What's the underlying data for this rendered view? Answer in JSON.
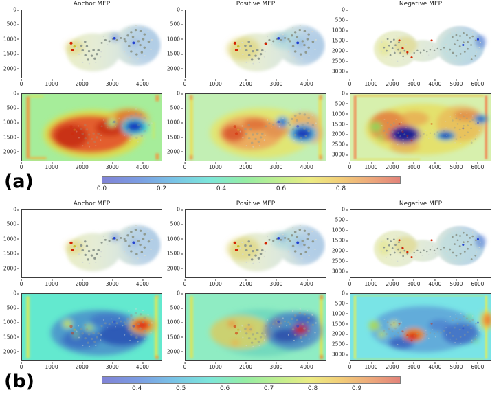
{
  "figure": {
    "description": "Two-part figure (a)/(b): molecular electrostatic potential surfaces (top rows) and attention heatmap overlays (bottom rows) for Anchor, Positive and Negative molecules, each part with a horizontal rainbow colorbar.",
    "colors": {
      "colormap_stops": [
        "#8083d6",
        "#7b9ce2",
        "#79c3e6",
        "#7ce6da",
        "#95eda4",
        "#c3ee8e",
        "#eceb83",
        "#f2cd78",
        "#eda97b",
        "#e2837a"
      ],
      "atom_carbon": "#8f9a90",
      "atom_hydrogen": "#d2d9d2",
      "atom_oxygen": "#d42400",
      "atom_nitrogen": "#2140d0",
      "atom_sulfur": "#c8bc28",
      "heatmap_a_bg": [
        "#a6ed9a",
        "#c2efb4",
        "#d7f0ad"
      ],
      "heatmap_b_bg": [
        "#63e9cf",
        "#8fecc3",
        "#79e4e6"
      ]
    }
  },
  "groups": [
    {
      "label": "(a)",
      "columns": [
        {
          "title": "Anchor MEP",
          "x": {
            "values": [
              0,
              1000,
              2000,
              3000,
              4000
            ],
            "min": 0,
            "max": 4650
          },
          "y": {
            "values": [
              0,
              500,
              1000,
              1500,
              2000
            ],
            "min": 0,
            "max": 2330
          }
        },
        {
          "title": "Positive MEP",
          "x": {
            "values": [
              0,
              1000,
              2000,
              3000,
              4000
            ],
            "min": 0,
            "max": 4650
          },
          "y": {
            "values": [
              0,
              500,
              1000,
              1500,
              2000
            ],
            "min": 0,
            "max": 2330
          }
        },
        {
          "title": "Negative MEP",
          "x": {
            "values": [
              0,
              1000,
              2000,
              3000,
              4000,
              5000,
              6000
            ],
            "min": 0,
            "max": 6650
          },
          "y": {
            "values": [
              0,
              500,
              1000,
              1500,
              2000,
              2500,
              3000
            ],
            "min": 0,
            "max": 3330
          }
        }
      ],
      "colorbar": {
        "values": [
          0,
          0.2,
          0.4,
          0.6,
          0.8
        ],
        "labels": [
          "0.0",
          "0.2",
          "0.4",
          "0.6",
          "0.8"
        ],
        "min": 0,
        "max": 1
      }
    },
    {
      "label": "(b)",
      "columns": [
        {
          "title": "Anchor MEP",
          "x": {
            "values": [
              0,
              1000,
              2000,
              3000,
              4000
            ],
            "min": 0,
            "max": 4650
          },
          "y": {
            "values": [
              0,
              500,
              1000,
              1500,
              2000
            ],
            "min": 0,
            "max": 2330
          }
        },
        {
          "title": "Positive MEP",
          "x": {
            "values": [
              0,
              1000,
              2000,
              3000,
              4000
            ],
            "min": 0,
            "max": 4650
          },
          "y": {
            "values": [
              0,
              500,
              1000,
              1500,
              2000
            ],
            "min": 0,
            "max": 2330
          }
        },
        {
          "title": "Negative MEP",
          "x": {
            "values": [
              0,
              1000,
              2000,
              3000,
              4000,
              5000,
              6000
            ],
            "min": 0,
            "max": 6650
          },
          "y": {
            "values": [
              0,
              500,
              1000,
              1500,
              2000,
              2500,
              3000
            ],
            "min": 0,
            "max": 3330
          }
        }
      ],
      "colorbar": {
        "values": [
          0.4,
          0.5,
          0.6,
          0.7,
          0.8,
          0.9
        ],
        "labels": [
          "0.4",
          "0.5",
          "0.6",
          "0.7",
          "0.8",
          "0.9"
        ],
        "min": 0.32,
        "max": 1.0
      }
    }
  ],
  "chart_data": [
    {
      "type": "heatmap",
      "group": "(a)",
      "row": 1,
      "col": 1,
      "title": "Anchor MEP",
      "content": "3D MEP surface of anchor molecule; pale green-grey surface, yellow electron patch near two red oxygens and one yellow sulfur (x≈1650,y≈1200), blue positive patches at ring nitrogens (x≈3050,y≈1000 and x≈3700,y≈1150)",
      "xlim": [
        0,
        4650
      ],
      "ylim_inverted": [
        0,
        2330
      ],
      "xticks": [
        0,
        1000,
        2000,
        3000,
        4000
      ],
      "yticks": [
        0,
        500,
        1000,
        1500,
        2000
      ]
    },
    {
      "type": "heatmap",
      "group": "(a)",
      "row": 1,
      "col": 2,
      "title": "Positive MEP",
      "content": "3D MEP surface of positive molecule; yellow patch on left cage, cyan middle-right, extra red oxygen at x≈2600,y≈1200, blue nitrogen patches on right lobe",
      "xlim": [
        0,
        4650
      ],
      "ylim_inverted": [
        0,
        2330
      ],
      "xticks": [
        0,
        1000,
        2000,
        3000,
        4000
      ],
      "yticks": [
        0,
        500,
        1000,
        1500,
        2000
      ]
    },
    {
      "type": "heatmap",
      "group": "(a)",
      "row": 1,
      "col": 3,
      "title": "Negative MEP",
      "content": "3D MEP surface of larger negative molecule; yellow patch center-left near four red oxygens (x≈2000-2900,y≈1500-2400), pale cyan right lobe with blue nitrogens (x≈5300,y≈1750 and x≈6000,y≈1450)",
      "xlim": [
        0,
        6650
      ],
      "ylim_inverted": [
        0,
        3330
      ],
      "xticks": [
        0,
        1000,
        2000,
        3000,
        4000,
        5000,
        6000
      ],
      "yticks": [
        0,
        500,
        1000,
        1500,
        2000,
        2500,
        3000
      ]
    },
    {
      "type": "heatmap",
      "group": "(a)",
      "row": 2,
      "col": 1,
      "content": "Attention heatmap over anchor molecule: light-green background, orange left-edge band, large red high-attention region covering molecule (x≈900-3300,y≈800-2000), small green window x≈2950,y≈1050, deep blue low-attention blob x≈3700,y≈1150",
      "value_range": [
        0,
        1
      ]
    },
    {
      "type": "heatmap",
      "group": "(a)",
      "row": 2,
      "col": 2,
      "content": "Attention heatmap over positive molecule: pale green background, yellow edge bands, orange-red tint across molecule, blue spot x≈3180,y≈1000, large blue blob x≈3850,y≈1400",
      "value_range": [
        0,
        1
      ]
    },
    {
      "type": "heatmap",
      "group": "(a)",
      "row": 2,
      "col": 3,
      "content": "Attention heatmap over negative molecule: yellow-green background, salmon edge bands, orange-red molecule tint, green spot x≈1200,y≈1650, dark navy blob x≈2550,y≈2050, blue blobs x≈4480,y≈2100 and x≈6100,y≈1300",
      "value_range": [
        0,
        1
      ]
    },
    {
      "type": "colorbar",
      "group": "(a)",
      "orientation": "horizontal",
      "colormap": "rainbow",
      "range": [
        0.0,
        1.0
      ],
      "ticks": [
        0.0,
        0.2,
        0.4,
        0.6,
        0.8
      ]
    },
    {
      "type": "heatmap",
      "group": "(b)",
      "row": 1,
      "col": 1,
      "title": "Anchor MEP",
      "content": "Same anchor MEP surface as group (a)",
      "xlim": [
        0,
        4650
      ],
      "ylim_inverted": [
        0,
        2330
      ],
      "xticks": [
        0,
        1000,
        2000,
        3000,
        4000
      ],
      "yticks": [
        0,
        500,
        1000,
        1500,
        2000
      ]
    },
    {
      "type": "heatmap",
      "group": "(b)",
      "row": 1,
      "col": 2,
      "title": "Positive MEP",
      "content": "Same positive MEP surface as group (a)",
      "xlim": [
        0,
        4650
      ],
      "ylim_inverted": [
        0,
        2330
      ],
      "xticks": [
        0,
        1000,
        2000,
        3000,
        4000
      ],
      "yticks": [
        0,
        500,
        1000,
        1500,
        2000
      ]
    },
    {
      "type": "heatmap",
      "group": "(b)",
      "row": 1,
      "col": 3,
      "title": "Negative MEP",
      "content": "Same negative MEP surface as group (a)",
      "xlim": [
        0,
        6650
      ],
      "ylim_inverted": [
        0,
        3330
      ],
      "xticks": [
        0,
        1000,
        2000,
        3000,
        4000,
        5000,
        6000
      ],
      "yticks": [
        0,
        500,
        1000,
        1500,
        2000,
        2500,
        3000
      ]
    },
    {
      "type": "heatmap",
      "group": "(b)",
      "row": 2,
      "col": 1,
      "content": "Attention heatmap over anchor molecule: cyan background, yellow edge bands, blue low-value region over molecule, yellow-green spots left cage, red hotspot with orange halo x≈3950,y≈1150",
      "value_range": [
        0.32,
        1.0
      ]
    },
    {
      "type": "heatmap",
      "group": "(b)",
      "row": 2,
      "col": 2,
      "content": "Attention heatmap over positive molecule: teal-green background, yellow edge bands, warm yellow-orange left half, blue right half, red/purple hotspot x≈3780,y≈1280",
      "value_range": [
        0.32,
        1.0
      ]
    },
    {
      "type": "heatmap",
      "group": "(b)",
      "row": 2,
      "col": 3,
      "content": "Attention heatmap over negative molecule: cyan background, yellow-green edge bands, blue molecule tint, yellow-green spots left (x≈1100-2000,y≈1500-2100), orange-red hotspot x≈2950,y≈2100, orange right-edge spot x≈6450,y≈1350",
      "value_range": [
        0.32,
        1.0
      ]
    },
    {
      "type": "colorbar",
      "group": "(b)",
      "orientation": "horizontal",
      "colormap": "rainbow",
      "range": [
        0.32,
        1.0
      ],
      "ticks": [
        0.4,
        0.5,
        0.6,
        0.7,
        0.8,
        0.9
      ]
    }
  ]
}
